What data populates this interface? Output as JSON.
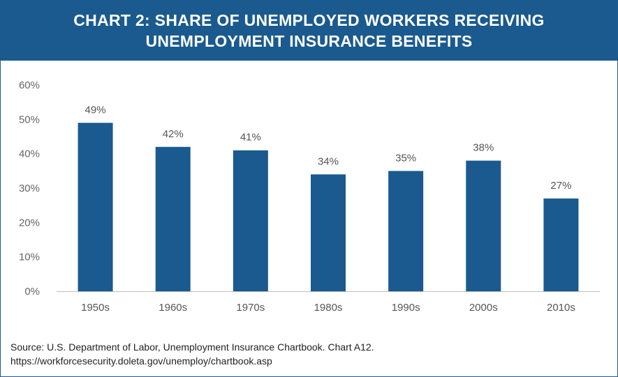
{
  "header": {
    "title_line1": "CHART 2: SHARE OF UNEMPLOYED WORKERS RECEIVING",
    "title_line2": "UNEMPLOYMENT INSURANCE BENEFITS"
  },
  "chart_data": {
    "type": "bar",
    "title": "CHART 2: SHARE OF UNEMPLOYED WORKERS RECEIVING UNEMPLOYMENT INSURANCE BENEFITS",
    "categories": [
      "1950s",
      "1960s",
      "1970s",
      "1980s",
      "1990s",
      "2000s",
      "2010s"
    ],
    "values": [
      49,
      42,
      41,
      34,
      35,
      38,
      27
    ],
    "data_labels": [
      "49%",
      "42%",
      "41%",
      "34%",
      "35%",
      "38%",
      "27%"
    ],
    "ylim": [
      0,
      60
    ],
    "yticks": [
      0,
      10,
      20,
      30,
      40,
      50,
      60
    ],
    "ytick_labels": [
      "0%",
      "10%",
      "20%",
      "30%",
      "40%",
      "50%",
      "60%"
    ],
    "bar_color": "#1a5a8e",
    "grid": false,
    "legend": "none"
  },
  "source": {
    "line1": "Source: U.S. Department of Labor, Unemployment Insurance Chartbook. Chart A12.",
    "line2": "https://workforcesecurity.doleta.gov/unemploy/chartbook.asp"
  }
}
